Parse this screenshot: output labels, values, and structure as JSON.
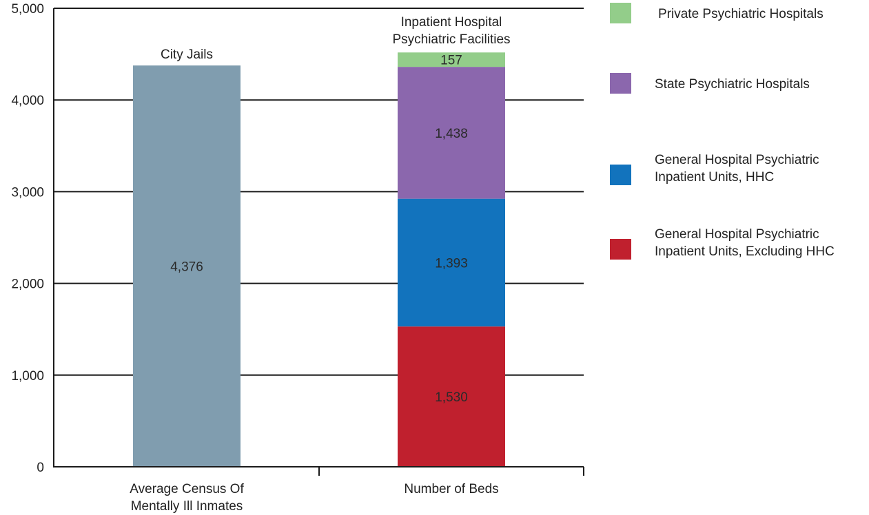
{
  "chart_data": {
    "type": "bar",
    "stacked": true,
    "ylim": [
      0,
      5000
    ],
    "yticks": [
      "0",
      "1,000",
      "2,000",
      "3,000",
      "4,000",
      "5,000"
    ],
    "ytick_values": [
      0,
      1000,
      2000,
      3000,
      4000,
      5000
    ],
    "grid": true,
    "categories": [
      {
        "lines": [
          "Average Census Of",
          "Mentally Ill Inmates"
        ]
      },
      {
        "lines": [
          "Number of Beds"
        ]
      }
    ],
    "annotations": [
      {
        "lines": [
          "City Jails"
        ]
      },
      {
        "lines": [
          "Inpatient Hospital",
          "Psychiatric Facilities"
        ]
      }
    ],
    "series": [
      {
        "name": "City Jails",
        "color": "#809daf",
        "values": [
          4376,
          0
        ],
        "labels": [
          "4,376",
          ""
        ],
        "show_in_legend": false
      },
      {
        "name": "General Hospital Psychiatric Inpatient Units, Excluding HHC",
        "color": "#c0202e",
        "values": [
          0,
          1530
        ],
        "labels": [
          "",
          "1,530"
        ],
        "show_in_legend": true
      },
      {
        "name": "General Hospital Psychiatric Inpatient Units, HHC",
        "color": "#1273bd",
        "values": [
          0,
          1393
        ],
        "labels": [
          "",
          "1,393"
        ],
        "show_in_legend": true
      },
      {
        "name": "State Psychiatric Hospitals",
        "color": "#8b67ad",
        "values": [
          0,
          1438
        ],
        "labels": [
          "",
          "1,438"
        ],
        "show_in_legend": true
      },
      {
        "name": "Private Psychiatric Hospitals",
        "color": "#93cd8a",
        "values": [
          0,
          157
        ],
        "labels": [
          "",
          "157"
        ],
        "show_in_legend": true
      }
    ],
    "legend": {
      "placement": "right",
      "items": [
        {
          "lines": [
            "Private Psychiatric Hospitals"
          ],
          "color": "#93cd8a"
        },
        {
          "lines": [
            "State Psychiatric Hospitals"
          ],
          "color": "#8b67ad"
        },
        {
          "lines": [
            "General Hospital Psychiatric",
            "Inpatient Units, HHC"
          ],
          "color": "#1273bd"
        },
        {
          "lines": [
            "General Hospital Psychiatric",
            "Inpatient Units, Excluding HHC"
          ],
          "color": "#c0202e"
        }
      ]
    }
  }
}
